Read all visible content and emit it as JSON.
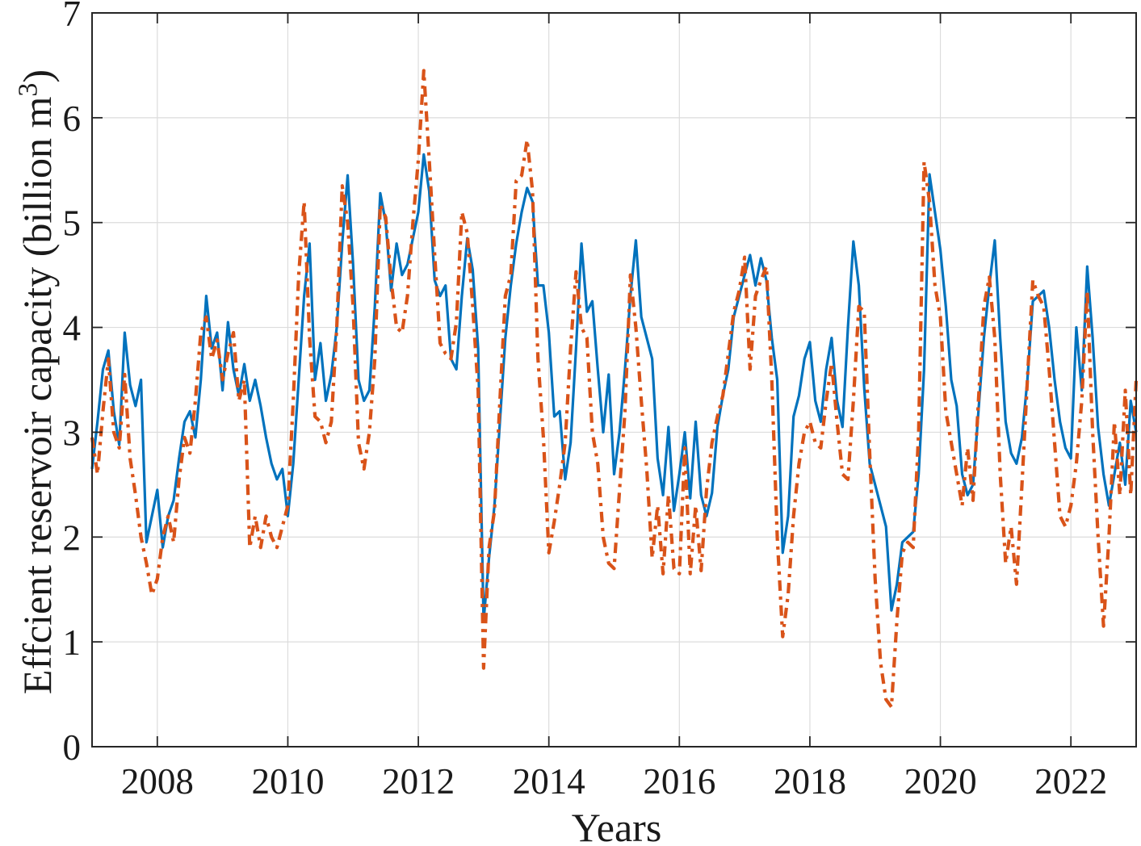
{
  "figure": {
    "background": "#ffffff",
    "plot_background": "#ffffff"
  },
  "chart_data": {
    "type": "line",
    "title": "",
    "xlabel": "Years",
    "ylabel": "Effcient reservoir capacity (billion m³)",
    "ylabel_parts": {
      "main": "Effcient reservoir capacity (billion m",
      "sup": "3",
      "close": ")"
    },
    "xlim": [
      2007,
      2023
    ],
    "ylim": [
      0,
      7
    ],
    "xticks": [
      2008,
      2010,
      2012,
      2014,
      2016,
      2018,
      2020,
      2022
    ],
    "yticks": [
      0,
      1,
      2,
      3,
      4,
      5,
      6,
      7
    ],
    "grid": true,
    "legend": "none",
    "axis_color": "#262626",
    "grid_color": "#dcdcdc",
    "tick_label_color": "#1a1a1a",
    "x_start_year": 2007.0,
    "x_step": 0.0833333,
    "series": [
      {
        "name": "blue solid series",
        "color": "#0072BD",
        "style": "solid",
        "line_width": 3.2,
        "values": [
          2.65,
          3.1,
          3.6,
          3.78,
          3.2,
          2.88,
          3.95,
          3.45,
          3.25,
          3.5,
          1.95,
          2.2,
          2.45,
          1.9,
          2.2,
          2.35,
          2.75,
          3.1,
          3.2,
          2.95,
          3.5,
          4.3,
          3.8,
          3.95,
          3.4,
          4.05,
          3.6,
          3.35,
          3.65,
          3.3,
          3.5,
          3.25,
          2.95,
          2.7,
          2.55,
          2.65,
          2.2,
          2.7,
          3.5,
          4.3,
          4.8,
          3.5,
          3.85,
          3.3,
          3.55,
          4.0,
          4.8,
          5.45,
          4.6,
          3.5,
          3.3,
          3.4,
          4.2,
          5.28,
          5.0,
          4.35,
          4.8,
          4.5,
          4.6,
          4.85,
          5.1,
          5.65,
          5.3,
          4.45,
          4.3,
          4.4,
          3.7,
          3.6,
          4.3,
          4.85,
          4.55,
          3.8,
          1.2,
          1.8,
          2.3,
          3.1,
          3.9,
          4.4,
          4.8,
          5.1,
          5.33,
          5.2,
          4.4,
          4.4,
          3.95,
          3.15,
          3.2,
          2.55,
          2.9,
          3.8,
          4.8,
          4.15,
          4.25,
          3.6,
          3.0,
          3.55,
          2.6,
          3.0,
          3.6,
          4.3,
          4.83,
          4.1,
          3.9,
          3.7,
          2.75,
          2.4,
          3.05,
          2.25,
          2.6,
          3.0,
          2.37,
          3.1,
          2.4,
          2.2,
          2.42,
          3.05,
          3.35,
          3.6,
          4.1,
          4.3,
          4.5,
          4.69,
          4.4,
          4.66,
          4.45,
          3.9,
          3.5,
          1.85,
          2.2,
          3.15,
          3.35,
          3.7,
          3.86,
          3.3,
          3.1,
          3.6,
          3.9,
          3.3,
          3.05,
          4.0,
          4.82,
          4.4,
          3.42,
          2.7,
          2.5,
          2.3,
          2.1,
          1.3,
          1.55,
          1.95,
          2.0,
          2.05,
          2.6,
          3.6,
          5.46,
          5.1,
          4.74,
          4.2,
          3.5,
          3.25,
          2.6,
          2.4,
          2.5,
          3.2,
          3.9,
          4.4,
          4.83,
          3.9,
          3.1,
          2.8,
          2.7,
          2.95,
          3.5,
          4.25,
          4.3,
          4.35,
          4.0,
          3.5,
          3.1,
          2.85,
          2.75,
          4.0,
          3.4,
          4.58,
          3.9,
          3.05,
          2.6,
          2.3,
          2.6,
          2.9,
          2.5,
          3.3,
          3.0
        ]
      },
      {
        "name": "orange dash-dot series",
        "color": "#D95319",
        "style": "dash-dot",
        "line_width": 4.2,
        "values": [
          2.95,
          2.6,
          3.2,
          3.7,
          3.0,
          2.85,
          3.55,
          2.75,
          2.4,
          2.0,
          1.75,
          1.45,
          1.6,
          2.0,
          2.2,
          1.95,
          2.55,
          2.95,
          2.8,
          3.3,
          3.95,
          4.1,
          3.7,
          3.88,
          3.5,
          3.75,
          3.95,
          3.3,
          3.5,
          1.9,
          2.2,
          1.9,
          2.2,
          2.0,
          1.9,
          2.1,
          2.3,
          3.3,
          4.5,
          5.2,
          3.9,
          3.15,
          3.1,
          2.9,
          3.1,
          4.0,
          5.35,
          5.0,
          4.2,
          2.9,
          2.65,
          3.0,
          3.7,
          5.17,
          5.05,
          4.45,
          4.0,
          3.95,
          4.3,
          5.0,
          5.6,
          6.45,
          5.6,
          4.7,
          3.85,
          3.75,
          3.7,
          4.05,
          5.1,
          4.9,
          4.2,
          3.4,
          0.75,
          1.9,
          2.25,
          3.3,
          4.3,
          4.5,
          5.4,
          5.45,
          5.79,
          5.3,
          3.7,
          2.95,
          1.85,
          2.15,
          2.5,
          2.9,
          3.8,
          4.53,
          4.0,
          3.9,
          3.0,
          2.7,
          2.0,
          1.75,
          1.7,
          2.45,
          3.2,
          4.5,
          4.0,
          3.3,
          2.65,
          1.8,
          2.3,
          1.65,
          2.4,
          1.7,
          1.65,
          2.85,
          1.65,
          2.3,
          1.68,
          2.45,
          2.9,
          3.15,
          3.35,
          3.75,
          4.15,
          4.35,
          4.67,
          3.6,
          4.3,
          4.45,
          4.58,
          3.5,
          2.0,
          1.05,
          1.45,
          2.2,
          2.7,
          3.0,
          3.1,
          2.9,
          2.85,
          3.3,
          3.66,
          3.1,
          2.6,
          2.55,
          3.3,
          4.2,
          4.15,
          2.8,
          1.6,
          0.8,
          0.45,
          0.38,
          1.2,
          1.85,
          1.95,
          1.9,
          3.0,
          5.58,
          5.2,
          4.4,
          4.1,
          3.2,
          2.9,
          2.6,
          2.3,
          2.85,
          2.35,
          3.3,
          4.2,
          4.48,
          3.9,
          2.6,
          1.75,
          2.1,
          1.55,
          2.5,
          3.5,
          4.45,
          4.3,
          4.2,
          3.6,
          2.9,
          2.2,
          2.1,
          2.3,
          2.7,
          3.3,
          4.35,
          3.0,
          2.0,
          1.15,
          2.0,
          3.1,
          2.4,
          3.4,
          2.4,
          3.5
        ]
      }
    ]
  }
}
